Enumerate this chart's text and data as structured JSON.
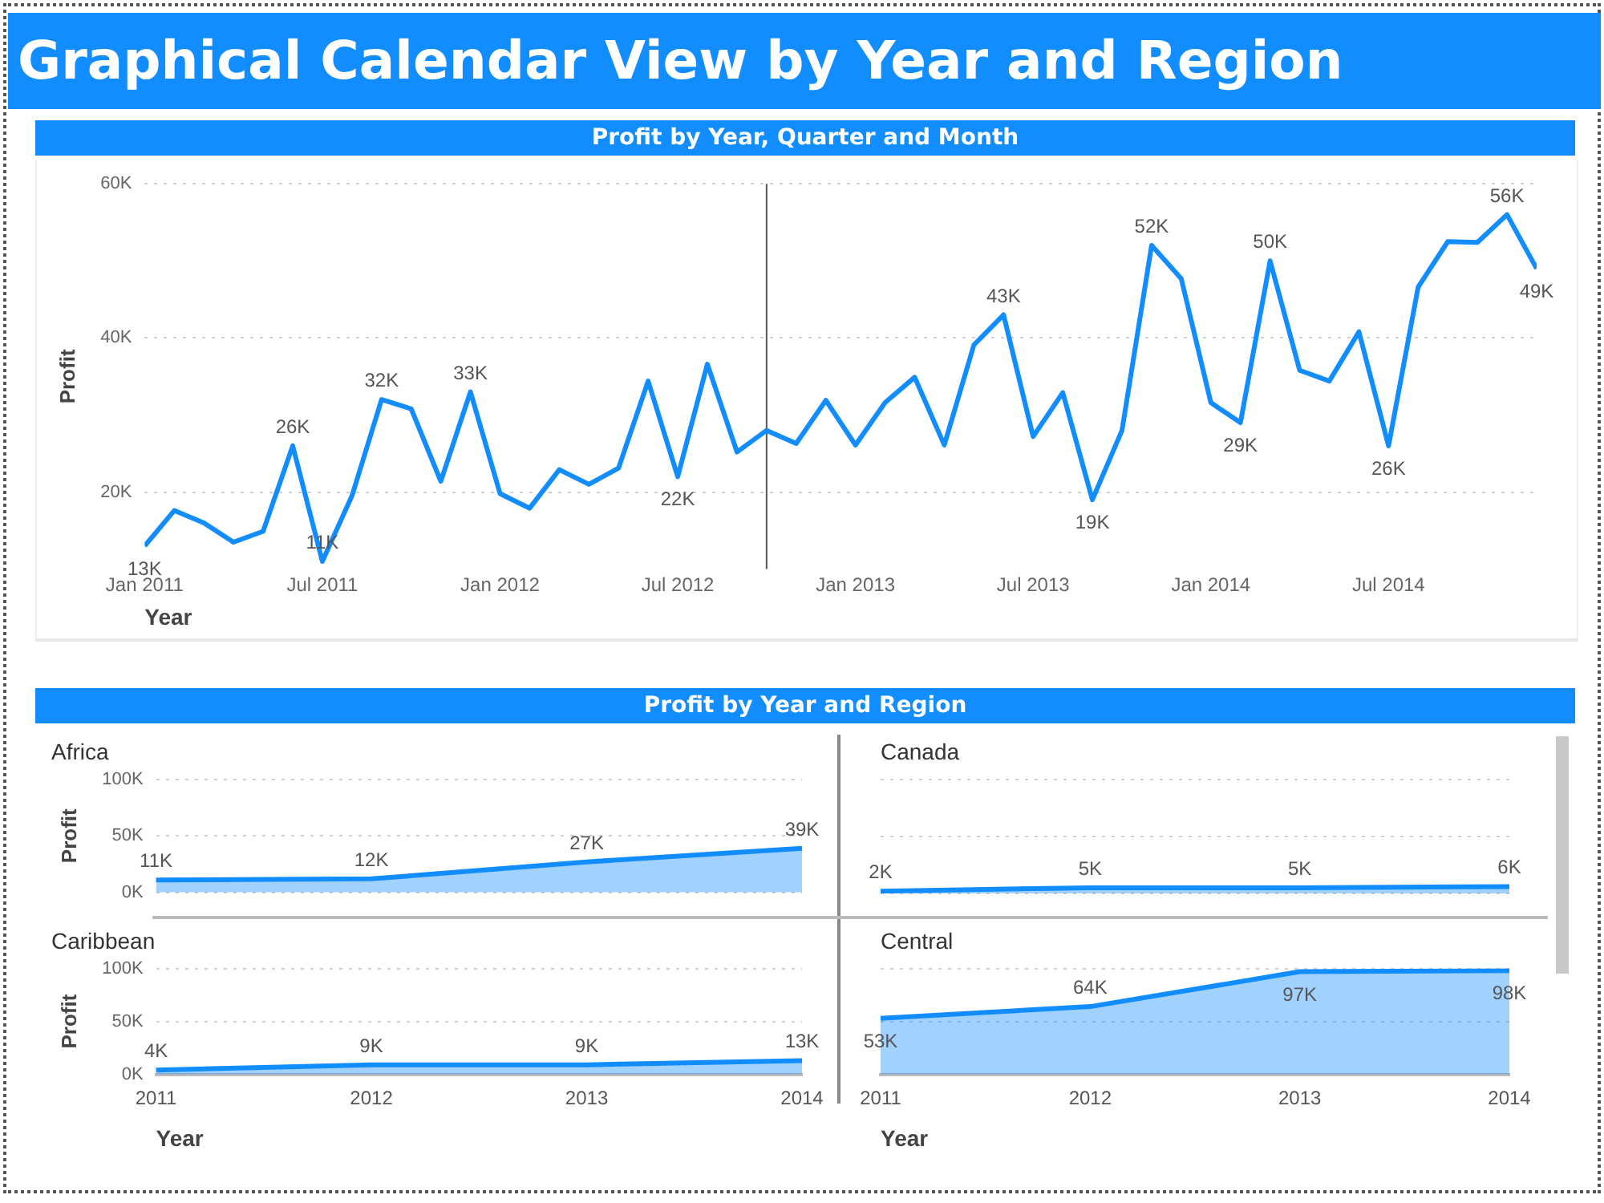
{
  "chart_data": [
    {
      "type": "line",
      "title": "Graphical Calendar View by Year and Region",
      "subtitle": "Profit by Year, Quarter and Month",
      "xlabel": "Year",
      "ylabel": "Profit",
      "x": [
        "2011-01",
        "2011-02",
        "2011-03",
        "2011-04",
        "2011-05",
        "2011-06",
        "2011-07",
        "2011-08",
        "2011-09",
        "2011-10",
        "2011-11",
        "2011-12",
        "2012-01",
        "2012-02",
        "2012-03",
        "2012-04",
        "2012-05",
        "2012-06",
        "2012-07",
        "2012-08",
        "2012-09",
        "2012-10",
        "2012-11",
        "2012-12",
        "2013-01",
        "2013-02",
        "2013-03",
        "2013-04",
        "2013-05",
        "2013-06",
        "2013-07",
        "2013-08",
        "2013-09",
        "2013-10",
        "2013-11",
        "2013-12",
        "2014-01",
        "2014-02",
        "2014-03",
        "2014-04",
        "2014-05",
        "2014-06",
        "2014-07",
        "2014-08",
        "2014-09",
        "2014-10",
        "2014-11",
        "2014-12"
      ],
      "series": [
        {
          "color": "#118dff",
          "values": [
            13000,
            17600,
            16000,
            13500,
            14900,
            26000,
            11000,
            19500,
            32000,
            30800,
            21400,
            33000,
            19800,
            17900,
            22900,
            21000,
            23100,
            34400,
            22000,
            36600,
            25200,
            28000,
            26300,
            31900,
            26100,
            31600,
            34900,
            26100,
            39100,
            43000,
            27200,
            32900,
            19000,
            28000,
            52000,
            47700,
            31600,
            29000,
            50000,
            35800,
            34400,
            40800,
            26000,
            46600,
            52500,
            52400,
            56000,
            49000
          ],
          "value_labels": [
            "13K",
            null,
            null,
            null,
            null,
            "26K",
            "11K",
            null,
            "32K",
            null,
            null,
            "33K",
            null,
            null,
            null,
            null,
            null,
            null,
            "22K",
            null,
            null,
            null,
            null,
            null,
            null,
            null,
            null,
            null,
            null,
            "43K",
            null,
            null,
            "19K",
            null,
            "52K",
            null,
            null,
            "29K",
            "50K",
            null,
            null,
            null,
            "26K",
            null,
            null,
            null,
            "56K",
            "49K"
          ]
        }
      ],
      "xlim": [
        "2011-01",
        "2014-12"
      ],
      "xticks": [
        {
          "value": "2011-01",
          "label": "Jan 2011"
        },
        {
          "value": "2011-07",
          "label": "Jul 2011"
        },
        {
          "value": "2012-01",
          "label": "Jan 2012"
        },
        {
          "value": "2012-07",
          "label": "Jul 2012"
        },
        {
          "value": "2013-01",
          "label": "Jan 2013"
        },
        {
          "value": "2013-07",
          "label": "Jul 2013"
        },
        {
          "value": "2014-01",
          "label": "Jan 2014"
        },
        {
          "value": "2014-07",
          "label": "Jul 2014"
        }
      ],
      "ylim": [
        10000,
        60000
      ],
      "yticks": [
        {
          "value": 20000,
          "label": "20K"
        },
        {
          "value": 40000,
          "label": "40K"
        },
        {
          "value": 60000,
          "label": "60K"
        }
      ],
      "grid": "y",
      "legend": false,
      "ref_lines": [
        {
          "axis": "x",
          "value": "2012-10",
          "color": "#555555"
        }
      ]
    },
    {
      "type": "area",
      "title": "Profit by Year and Region",
      "subtitle": "Africa",
      "ylabel": "Profit",
      "categories": [
        "2011",
        "2012",
        "2013",
        "2014"
      ],
      "series": [
        {
          "color": "#118dff",
          "values": [
            11000,
            12000,
            27000,
            39000
          ],
          "value_labels": [
            "11K",
            "12K",
            "27K",
            "39K"
          ]
        }
      ],
      "ylim": [
        0,
        100000
      ],
      "yticks": [
        {
          "value": 0,
          "label": "0K"
        },
        {
          "value": 50000,
          "label": "50K"
        },
        {
          "value": 100000,
          "label": "100K"
        }
      ],
      "grid": "y",
      "legend": false,
      "tick_labels": "y"
    },
    {
      "type": "area",
      "subtitle": "Canada",
      "categories": [
        "2011",
        "2012",
        "2013",
        "2014"
      ],
      "series": [
        {
          "color": "#118dff",
          "values": [
            2000,
            5000,
            5000,
            6000
          ],
          "value_labels": [
            "2K",
            "5K",
            "5K",
            "6K"
          ]
        }
      ],
      "ylim": [
        0,
        100000
      ],
      "yticks": [
        {
          "value": 0,
          "label": null
        },
        {
          "value": 50000,
          "label": null
        },
        {
          "value": 100000,
          "label": null
        }
      ],
      "grid": "y",
      "legend": false,
      "tick_labels": false
    },
    {
      "type": "area",
      "subtitle": "Caribbean",
      "xlabel": "Year",
      "ylabel": "Profit",
      "categories": [
        "2011",
        "2012",
        "2013",
        "2014"
      ],
      "series": [
        {
          "color": "#118dff",
          "values": [
            4000,
            9000,
            9000,
            13000
          ],
          "value_labels": [
            "4K",
            "9K",
            "9K",
            "13K"
          ]
        }
      ],
      "ylim": [
        0,
        100000
      ],
      "yticks": [
        {
          "value": 0,
          "label": "0K"
        },
        {
          "value": 50000,
          "label": "50K"
        },
        {
          "value": 100000,
          "label": "100K"
        }
      ],
      "grid": "y",
      "legend": false
    },
    {
      "type": "area",
      "subtitle": "Central",
      "xlabel": "Year",
      "categories": [
        "2011",
        "2012",
        "2013",
        "2014"
      ],
      "series": [
        {
          "color": "#118dff",
          "values": [
            53000,
            64000,
            97000,
            98000
          ],
          "value_labels": [
            "53K",
            "64K",
            "97K",
            "98K"
          ]
        }
      ],
      "ylim": [
        0,
        100000
      ],
      "yticks": [
        {
          "value": 0,
          "label": null
        },
        {
          "value": 50000,
          "label": null
        },
        {
          "value": 100000,
          "label": null
        }
      ],
      "grid": "y",
      "legend": false,
      "tick_labels": "x"
    }
  ]
}
